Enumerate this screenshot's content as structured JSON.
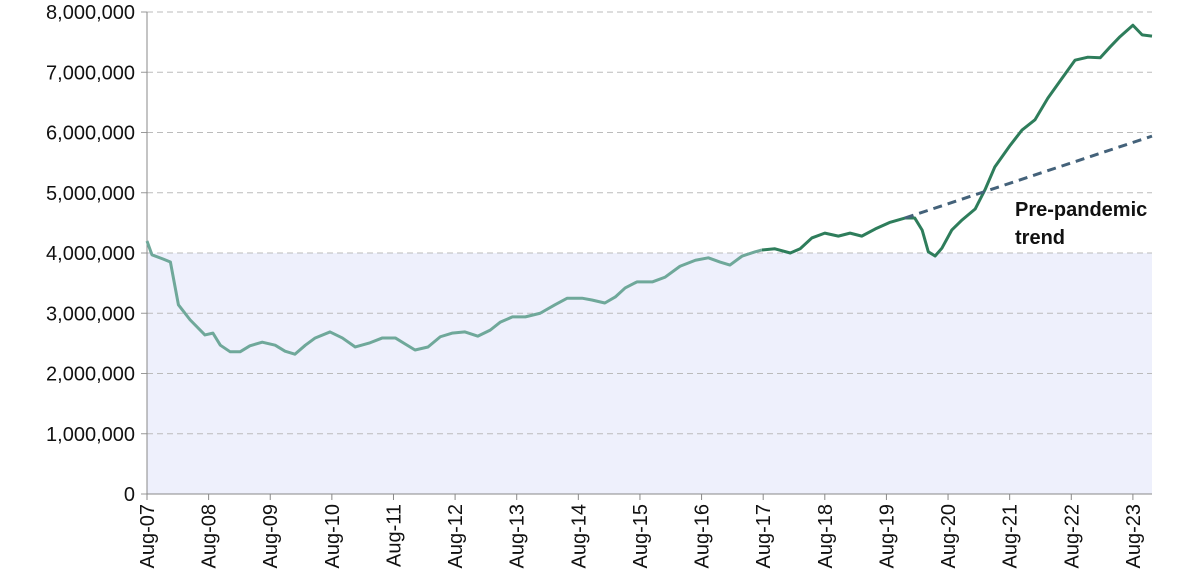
{
  "chart_data": {
    "type": "line",
    "ylim": [
      0,
      8000000
    ],
    "yticks": [
      0,
      {
        "value": 1000000,
        "label": "1,000,000"
      },
      {
        "value": 2000000,
        "label": "2,000,000"
      },
      {
        "value": 3000000,
        "label": "3,000,000"
      },
      {
        "value": 4000000,
        "label": "4,000,000"
      },
      {
        "value": 5000000,
        "label": "5,000,000"
      },
      {
        "value": 6000000,
        "label": "6,000,000"
      },
      {
        "value": 7000000,
        "label": "7,000,000"
      },
      {
        "value": 8000000,
        "label": "8,000,000"
      }
    ],
    "xlim": [
      2007.58,
      2023.89
    ],
    "xticks": [
      {
        "value": 2007.58,
        "label": "Aug-07"
      },
      {
        "value": 2008.58,
        "label": "Aug-08"
      },
      {
        "value": 2009.58,
        "label": "Aug-09"
      },
      {
        "value": 2010.58,
        "label": "Aug-10"
      },
      {
        "value": 2011.58,
        "label": "Aug-11"
      },
      {
        "value": 2012.58,
        "label": "Aug-12"
      },
      {
        "value": 2013.58,
        "label": "Aug-13"
      },
      {
        "value": 2014.58,
        "label": "Aug-14"
      },
      {
        "value": 2015.58,
        "label": "Aug-15"
      },
      {
        "value": 2016.58,
        "label": "Aug-16"
      },
      {
        "value": 2017.58,
        "label": "Aug-17"
      },
      {
        "value": 2018.58,
        "label": "Aug-18"
      },
      {
        "value": 2019.58,
        "label": "Aug-19"
      },
      {
        "value": 2020.58,
        "label": "Aug-20"
      },
      {
        "value": 2021.58,
        "label": "Aug-21"
      },
      {
        "value": 2022.58,
        "label": "Aug-22"
      },
      {
        "value": 2023.58,
        "label": "Aug-23"
      }
    ],
    "grid": true,
    "shaded_range": [
      0,
      4000000
    ],
    "shaded_color": "#eef0fc",
    "series": [
      {
        "color": "#6fa89a",
        "x": [
          2007.58,
          2007.66,
          2007.84,
          2007.96,
          2008.09,
          2008.28,
          2008.52,
          2008.65,
          2008.77,
          2008.93,
          2009.09,
          2009.25,
          2009.45,
          2009.66,
          2009.82,
          2009.98,
          2010.15,
          2010.31,
          2010.55,
          2010.75,
          2010.96,
          2011.2,
          2011.4,
          2011.61,
          2011.77,
          2011.93,
          2012.14,
          2012.34,
          2012.53,
          2012.74,
          2012.95,
          2013.15,
          2013.31,
          2013.51,
          2013.72,
          2013.96,
          2014.2,
          2014.4,
          2014.64,
          2014.8,
          2015.01,
          2015.18,
          2015.34,
          2015.53,
          2015.78,
          2015.99,
          2016.23,
          2016.48,
          2016.69,
          2016.88,
          2017.04,
          2017.24,
          2017.45,
          2017.56
        ],
        "values": [
          4200000,
          3970000,
          3900000,
          3850000,
          3140000,
          2890000,
          2640000,
          2670000,
          2470000,
          2360000,
          2360000,
          2460000,
          2520000,
          2470000,
          2370000,
          2320000,
          2470000,
          2590000,
          2690000,
          2590000,
          2440000,
          2510000,
          2590000,
          2590000,
          2490000,
          2390000,
          2440000,
          2610000,
          2670000,
          2690000,
          2620000,
          2720000,
          2850000,
          2940000,
          2940000,
          3000000,
          3140000,
          3250000,
          3250000,
          3220000,
          3170000,
          3270000,
          3420000,
          3520000,
          3520000,
          3600000,
          3780000,
          3880000,
          3920000,
          3850000,
          3800000,
          3950000,
          4020000,
          4050000
        ]
      },
      {
        "color": "#2e7d5b",
        "x": [
          2017.56,
          2017.77,
          2018.02,
          2018.18,
          2018.37,
          2018.58,
          2018.8,
          2018.99,
          2019.18,
          2019.4,
          2019.64,
          2019.88,
          2020.04,
          2020.16,
          2020.26,
          2020.37,
          2020.48,
          2020.64,
          2020.81,
          2021.02,
          2021.18,
          2021.34,
          2021.59,
          2021.78,
          2021.99,
          2022.2,
          2022.43,
          2022.64,
          2022.85,
          2023.05,
          2023.21,
          2023.37,
          2023.58,
          2023.73,
          2023.89
        ],
        "values": [
          4050000,
          4070000,
          4000000,
          4070000,
          4250000,
          4330000,
          4280000,
          4330000,
          4280000,
          4400000,
          4510000,
          4580000,
          4580000,
          4380000,
          4020000,
          3950000,
          4080000,
          4380000,
          4550000,
          4730000,
          5050000,
          5430000,
          5790000,
          6040000,
          6210000,
          6570000,
          6900000,
          7200000,
          7250000,
          7240000,
          7420000,
          7590000,
          7780000,
          7620000,
          7600000
        ]
      },
      {
        "color": "#44627a",
        "dashed": true,
        "x": [
          2019.88,
          2023.89
        ],
        "values": [
          4580000,
          5940000
        ]
      }
    ],
    "annotation": [
      "Pre-pandemic",
      "trend"
    ],
    "annotation_color": "#44627a"
  }
}
